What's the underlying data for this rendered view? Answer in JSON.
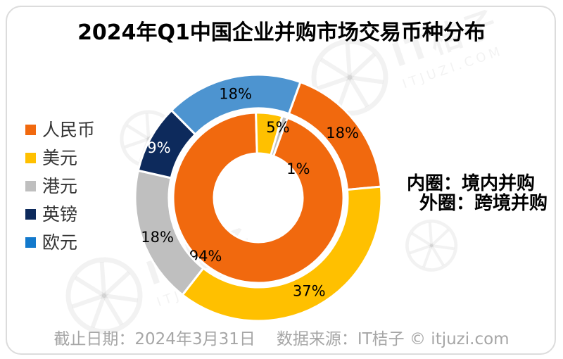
{
  "title": "2024年Q1中国企业并购市场交易币种分布",
  "legend": {
    "items": [
      {
        "label": "人民币",
        "color": "#F1690E"
      },
      {
        "label": "美元",
        "color": "#FFC000"
      },
      {
        "label": "港元",
        "color": "#BFBFBF"
      },
      {
        "label": "英镑",
        "color": "#0D2A5C"
      },
      {
        "label": "欧元",
        "color": "#1379CC"
      }
    ]
  },
  "annotation": {
    "line1": "内圈：境内并购",
    "line2": "外圈：跨境并购"
  },
  "footer": {
    "date_label": "截止日期：2024年3月31日",
    "source_label": "数据来源：IT桔子 © itjuzi.com"
  },
  "watermark": {
    "brand": "IT桔子",
    "domain": "ITJUZI.COM"
  },
  "chart_data": {
    "type": "pie",
    "subtype": "nested-donut",
    "title": "2024年Q1中国企业并购市场交易币种分布",
    "unit": "%",
    "categories": [
      "人民币",
      "美元",
      "港元",
      "英镑",
      "欧元"
    ],
    "colors": [
      "#F1690E",
      "#FFC000",
      "#BFBFBF",
      "#0D2A5C",
      "#4D94D0"
    ],
    "series": [
      {
        "name": "境内并购",
        "ring": "inner",
        "values": [
          94,
          5,
          1,
          0,
          0
        ]
      },
      {
        "name": "跨境并购",
        "ring": "outer",
        "values": [
          18,
          37,
          18,
          9,
          18
        ]
      }
    ],
    "legend_position": "left",
    "layout": {
      "center": [
        367,
        281
      ],
      "rings": {
        "inner": [
          63,
          121
        ],
        "outer": [
          127,
          175
        ]
      },
      "start_angle_deg": 20,
      "stroke": "#FFFFFF",
      "stroke_width": 3,
      "label_color": "#000000",
      "label_overrides": {
        "inner": {
          "0": [
            222,
            112
          ],
          "1": [
            15.6,
            104
          ],
          "2": [
            54.3,
            70
          ]
        },
        "outer": {
          "2": [
            248.6,
            154
          ],
          "3": [
            296.8,
            158
          ]
        }
      },
      "label_color_overrides": {
        "outer": {
          "3": "#FFFFFF"
        }
      }
    }
  }
}
